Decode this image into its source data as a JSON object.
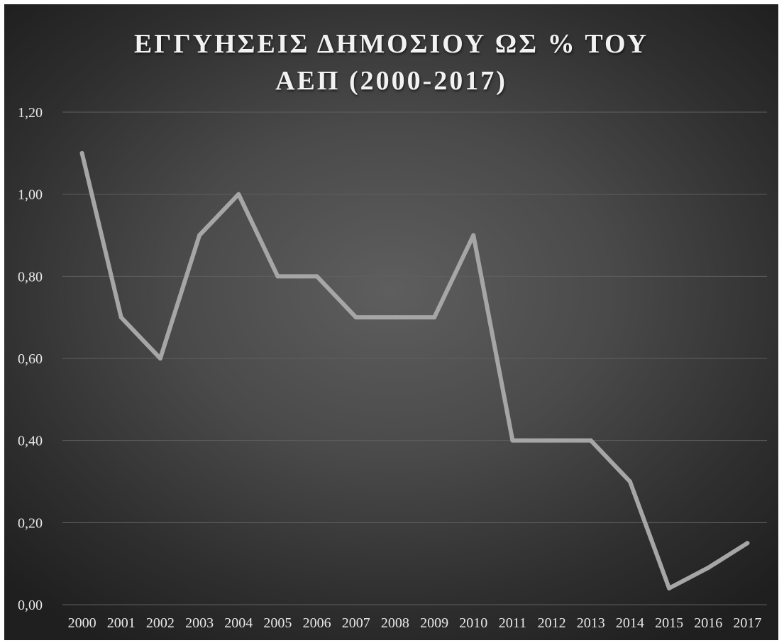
{
  "chart_data": {
    "type": "line",
    "title_lines": [
      "ΕΓΓΥΗΣΕΙΣ ΔΗΜΟΣΙΟΥ ΩΣ % ΤΟΥ",
      "ΑΕΠ (2000-2017)"
    ],
    "xlabel": "",
    "ylabel": "",
    "categories": [
      "2000",
      "2001",
      "2002",
      "2003",
      "2004",
      "2005",
      "2006",
      "2007",
      "2008",
      "2009",
      "2010",
      "2011",
      "2012",
      "2013",
      "2014",
      "2015",
      "2016",
      "2017"
    ],
    "series": [
      {
        "values": [
          1.1,
          0.7,
          0.6,
          0.9,
          1.0,
          0.8,
          0.8,
          0.7,
          0.7,
          0.7,
          0.9,
          0.4,
          0.4,
          0.4,
          0.3,
          0.04,
          0.09,
          0.15
        ]
      }
    ],
    "ylim": [
      0,
      1.2
    ],
    "yticks": [
      "0,00",
      "0,20",
      "0,40",
      "0,60",
      "0,80",
      "1,00",
      "1,20"
    ],
    "ytick_values": [
      0,
      0.2,
      0.4,
      0.6,
      0.8,
      1.0,
      1.2
    ],
    "grid": true,
    "legend": "none",
    "colors": {
      "line": "#a6a6a6",
      "grid": "#5f5f5f",
      "text": "#e8e8e8"
    }
  }
}
